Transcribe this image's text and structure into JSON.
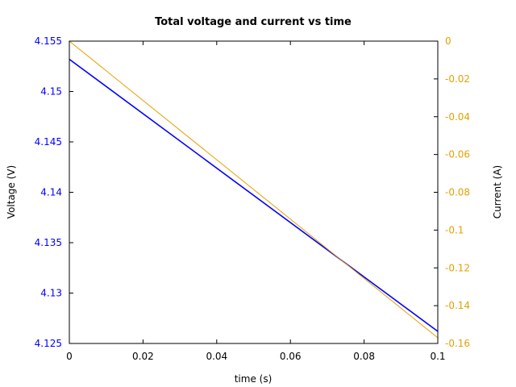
{
  "chart_data": {
    "type": "line",
    "title": "Total voltage and current vs time",
    "xlabel": "time (s)",
    "ylabel": "Voltage (V)",
    "y2label": "Current (A)",
    "xlim": [
      0,
      0.1
    ],
    "ylim": [
      4.125,
      4.155
    ],
    "y2lim": [
      -0.16,
      0
    ],
    "x_ticks": [
      "0",
      "0.02",
      "0.04",
      "0.06",
      "0.08",
      "0.1"
    ],
    "y_ticks": [
      "4.125",
      "4.13",
      "4.135",
      "4.14",
      "4.145",
      "4.15",
      "4.155"
    ],
    "y2_ticks": [
      "-0.16",
      "-0.14",
      "-0.12",
      "-0.1",
      "-0.08",
      "-0.06",
      "-0.04",
      "-0.02",
      "0"
    ],
    "grid": false,
    "series": [
      {
        "axis": "left",
        "color": "#0000ff",
        "x": [
          0,
          0.1
        ],
        "y": [
          4.1532,
          4.1262
        ]
      },
      {
        "axis": "right",
        "color": "#e6a000",
        "x": [
          0,
          0.1
        ],
        "y": [
          0,
          -0.157
        ]
      }
    ]
  }
}
